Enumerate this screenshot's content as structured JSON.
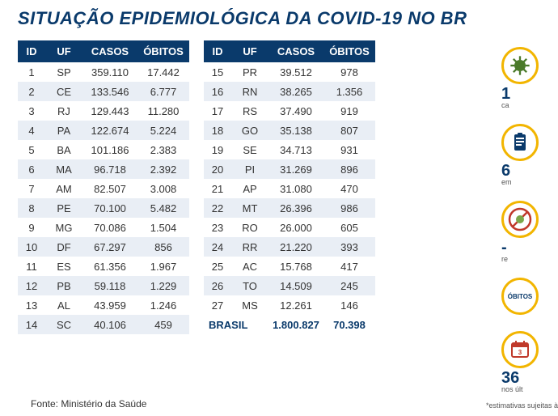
{
  "title": "SITUAÇÃO EPIDEMIOLÓGICA DA COVID-19 NO BR",
  "columns": [
    "ID",
    "UF",
    "CASOS",
    "ÓBITOS"
  ],
  "rows_left": [
    {
      "id": "1",
      "uf": "SP",
      "casos": "359.110",
      "obitos": "17.442"
    },
    {
      "id": "2",
      "uf": "CE",
      "casos": "133.546",
      "obitos": "6.777"
    },
    {
      "id": "3",
      "uf": "RJ",
      "casos": "129.443",
      "obitos": "11.280"
    },
    {
      "id": "4",
      "uf": "PA",
      "casos": "122.674",
      "obitos": "5.224"
    },
    {
      "id": "5",
      "uf": "BA",
      "casos": "101.186",
      "obitos": "2.383"
    },
    {
      "id": "6",
      "uf": "MA",
      "casos": "96.718",
      "obitos": "2.392"
    },
    {
      "id": "7",
      "uf": "AM",
      "casos": "82.507",
      "obitos": "3.008"
    },
    {
      "id": "8",
      "uf": "PE",
      "casos": "70.100",
      "obitos": "5.482"
    },
    {
      "id": "9",
      "uf": "MG",
      "casos": "70.086",
      "obitos": "1.504"
    },
    {
      "id": "10",
      "uf": "DF",
      "casos": "67.297",
      "obitos": "856"
    },
    {
      "id": "11",
      "uf": "ES",
      "casos": "61.356",
      "obitos": "1.967"
    },
    {
      "id": "12",
      "uf": "PB",
      "casos": "59.118",
      "obitos": "1.229"
    },
    {
      "id": "13",
      "uf": "AL",
      "casos": "43.959",
      "obitos": "1.246"
    },
    {
      "id": "14",
      "uf": "SC",
      "casos": "40.106",
      "obitos": "459"
    }
  ],
  "rows_right": [
    {
      "id": "15",
      "uf": "PR",
      "casos": "39.512",
      "obitos": "978"
    },
    {
      "id": "16",
      "uf": "RN",
      "casos": "38.265",
      "obitos": "1.356"
    },
    {
      "id": "17",
      "uf": "RS",
      "casos": "37.490",
      "obitos": "919"
    },
    {
      "id": "18",
      "uf": "GO",
      "casos": "35.138",
      "obitos": "807"
    },
    {
      "id": "19",
      "uf": "SE",
      "casos": "34.713",
      "obitos": "931"
    },
    {
      "id": "20",
      "uf": "PI",
      "casos": "31.269",
      "obitos": "896"
    },
    {
      "id": "21",
      "uf": "AP",
      "casos": "31.080",
      "obitos": "470"
    },
    {
      "id": "22",
      "uf": "MT",
      "casos": "26.396",
      "obitos": "986"
    },
    {
      "id": "23",
      "uf": "RO",
      "casos": "26.000",
      "obitos": "605"
    },
    {
      "id": "24",
      "uf": "RR",
      "casos": "21.220",
      "obitos": "393"
    },
    {
      "id": "25",
      "uf": "AC",
      "casos": "15.768",
      "obitos": "417"
    },
    {
      "id": "26",
      "uf": "TO",
      "casos": "14.509",
      "obitos": "245"
    },
    {
      "id": "27",
      "uf": "MS",
      "casos": "12.261",
      "obitos": "146"
    }
  ],
  "total": {
    "label": "BRASIL",
    "casos": "1.800.827",
    "obitos": "70.398"
  },
  "source": "Fonte: Ministério da Saúde",
  "footnote": "*estimativas sujeitas à",
  "stats": [
    {
      "num": "1",
      "sub": "ca"
    },
    {
      "num": "6",
      "sub": "em"
    },
    {
      "num": "-",
      "sub": "re"
    },
    {
      "num": "",
      "sub": ""
    },
    {
      "num": "36",
      "sub": "nos últ"
    }
  ],
  "colors": {
    "header_bg": "#0a3a6b",
    "header_fg": "#ffffff",
    "row_alt": "#e9eef5",
    "title_color": "#0a3a6b",
    "accent": "#f2b500"
  },
  "icon_labels": {
    "obitos": "ÓBITOS"
  }
}
